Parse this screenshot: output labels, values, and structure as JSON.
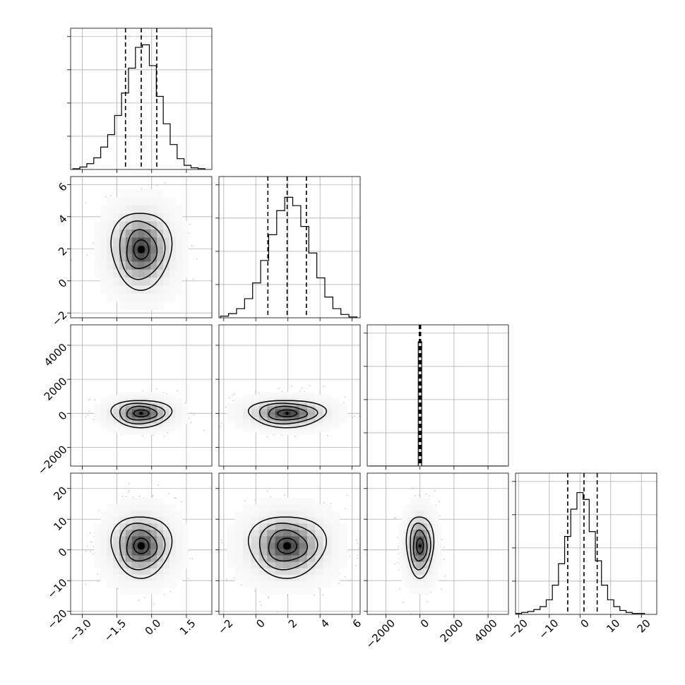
{
  "chart_data": {
    "type": "corner",
    "grid": true,
    "scatter_color": "#a0a0a0",
    "density_color": "#000000",
    "parameters": [
      {
        "range": [
          -3.5,
          2.6
        ],
        "ticks": [
          -3.0,
          -1.5,
          0.0,
          1.5
        ],
        "tick_labels": [
          "−3.0",
          "−1.5",
          "0.0",
          "1.5"
        ],
        "center": -0.45,
        "sigma": 0.65,
        "quantiles": [
          -1.13,
          -0.45,
          0.22
        ]
      },
      {
        "range": [
          -2.3,
          6.5
        ],
        "ticks": [
          -2,
          0,
          2,
          4,
          6
        ],
        "tick_labels": [
          "−2",
          "0",
          "2",
          "4",
          "6"
        ],
        "center": 1.95,
        "sigma": 1.2,
        "quantiles": [
          0.75,
          1.95,
          3.15
        ]
      },
      {
        "range": [
          -3100,
          5200
        ],
        "ticks": [
          -2000,
          0,
          2000,
          4000
        ],
        "tick_labels": [
          "−2000",
          "0",
          "2000",
          "4000"
        ],
        "center": 0,
        "sigma": 400,
        "quantiles": [
          -40,
          0,
          40
        ]
      },
      {
        "range": [
          -21,
          25
        ],
        "ticks": [
          -20,
          -10,
          0,
          10,
          20
        ],
        "tick_labels": [
          "−20",
          "−10",
          "0",
          "10",
          "20"
        ],
        "center": 1.3,
        "sigma": 5.0,
        "quantiles": [
          -4.0,
          1.3,
          5.6
        ]
      }
    ],
    "histograms": [
      {
        "bins": [
          -3.4,
          -3.1,
          -2.8,
          -2.5,
          -2.2,
          -1.9,
          -1.6,
          -1.3,
          -1.0,
          -0.7,
          -0.4,
          -0.1,
          0.2,
          0.5,
          0.8,
          1.1,
          1.4,
          1.7,
          2.0,
          2.3
        ],
        "counts": [
          1,
          3,
          7,
          14,
          27,
          42,
          65,
          92,
          122,
          147,
          150,
          125,
          88,
          55,
          30,
          13,
          5,
          2,
          1
        ],
        "ymax": 170
      },
      {
        "bins": [
          -2.2,
          -1.7,
          -1.2,
          -0.7,
          -0.2,
          0.3,
          0.8,
          1.3,
          1.8,
          2.3,
          2.8,
          3.3,
          3.8,
          4.3,
          4.8,
          5.3,
          5.8,
          6.3
        ],
        "counts": [
          2,
          5,
          11,
          23,
          42,
          69,
          100,
          129,
          145,
          135,
          110,
          78,
          48,
          25,
          11,
          4,
          1
        ],
        "ymax": 170
      },
      {
        "bins": [
          -3000,
          -2700,
          -2400,
          -2100,
          -1800,
          -1500,
          -1200,
          -900,
          -600,
          -300,
          -100,
          100,
          300,
          600,
          900,
          1200,
          1500,
          1800,
          2100,
          2400,
          2700,
          3000,
          3300,
          3600,
          3900,
          4200,
          4500,
          4800,
          5100
        ],
        "counts": [
          0,
          0,
          0,
          0,
          0,
          0,
          0,
          0,
          0,
          1,
          3700,
          1,
          0,
          0,
          0,
          0,
          0,
          0,
          0,
          0,
          0,
          0,
          0,
          0,
          0,
          0,
          0,
          0
        ],
        "ymax": 4200
      },
      {
        "bins": [
          -21,
          -19,
          -17,
          -15,
          -13,
          -11,
          -9,
          -7,
          -5,
          -3,
          -1,
          1,
          3,
          5,
          7,
          9,
          11,
          13,
          15,
          17,
          19,
          21
        ],
        "counts": [
          1,
          2,
          3,
          5,
          8,
          15,
          30,
          52,
          80,
          108,
          125,
          118,
          85,
          55,
          30,
          15,
          8,
          4,
          2,
          1,
          1
        ],
        "ymax": 145
      }
    ]
  }
}
